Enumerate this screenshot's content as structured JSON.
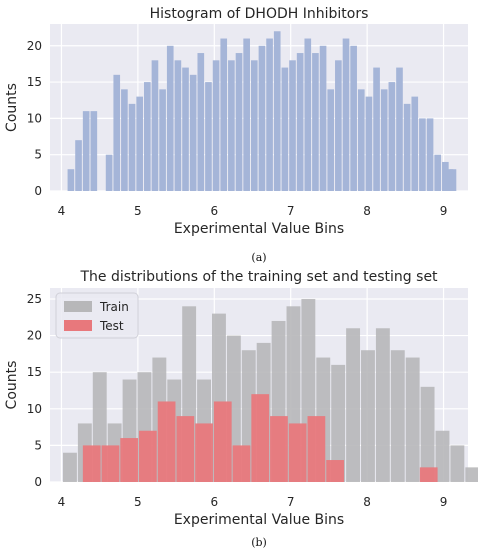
{
  "chart_data": [
    {
      "type": "bar",
      "title": "Histogram of DHODH Inhibitors",
      "xlabel": "Experimental Value Bins",
      "ylabel": "Counts",
      "caption": "(a)",
      "xlim": [
        3.85,
        9.32
      ],
      "ylim": [
        0,
        23
      ],
      "xticks": [
        4,
        5,
        6,
        7,
        8,
        9
      ],
      "yticks": [
        0,
        5,
        10,
        15,
        20
      ],
      "bin_start": 4.08,
      "bin_width": 0.1,
      "colors": {
        "bar": "#a5b5d8",
        "plot_bg": "#eaeaf2",
        "grid": "#ffffff"
      },
      "series": [
        {
          "values": [
            3,
            7,
            11,
            11,
            0,
            5,
            16,
            14,
            12,
            13,
            15,
            18,
            14,
            20,
            18,
            17,
            16,
            19,
            15,
            18,
            21,
            18,
            19,
            21,
            18,
            20,
            21,
            22,
            17,
            18,
            19,
            21,
            19,
            20,
            14,
            18,
            21,
            20,
            14,
            13,
            17,
            14,
            15,
            17,
            12,
            13,
            10,
            10,
            5,
            4,
            3,
            0,
            0,
            0,
            0,
            0,
            0,
            0,
            0,
            0,
            0,
            0,
            0,
            0,
            0,
            0,
            0,
            0,
            0,
            0,
            0,
            0,
            0,
            0,
            0,
            0,
            0,
            0,
            0,
            0,
            0,
            0,
            0,
            0,
            0,
            0,
            0,
            0,
            0,
            0,
            0,
            0,
            0,
            0,
            0,
            0,
            0,
            0,
            0,
            0
          ]
        }
      ],
      "extra_bars": [
        {
          "x": 9.04,
          "value": 3
        }
      ]
    },
    {
      "type": "bar",
      "title": "The distributions of the training set and testing set",
      "xlabel": "Experimental Value Bins",
      "ylabel": "Counts",
      "caption": "(b)",
      "xlim": [
        3.85,
        9.32
      ],
      "ylim": [
        0,
        26.5
      ],
      "xticks": [
        4,
        5,
        6,
        7,
        8,
        9
      ],
      "yticks": [
        0,
        5,
        10,
        15,
        20,
        25
      ],
      "colors": {
        "plot_bg": "#eaeaf2",
        "grid": "#ffffff"
      },
      "legend": {
        "placement": "top-left"
      },
      "series": [
        {
          "name": "Train",
          "color": "#b7b7b9",
          "bin_start": 4.02,
          "bin_width": 0.195,
          "values": [
            4,
            8,
            15,
            8,
            14,
            15,
            17,
            14,
            24,
            14,
            23,
            20,
            18,
            19,
            22,
            24,
            25,
            17,
            16,
            21,
            18,
            21,
            18,
            17,
            13,
            7,
            5,
            2,
            2
          ]
        },
        {
          "name": "Test",
          "color": "#e8787c",
          "bin_start": 4.28,
          "bin_width": 0.245,
          "values": [
            5,
            5,
            6,
            7,
            11,
            9,
            8,
            11,
            5,
            12,
            9,
            8,
            9,
            3,
            0,
            0,
            0,
            0,
            2
          ]
        }
      ]
    }
  ]
}
